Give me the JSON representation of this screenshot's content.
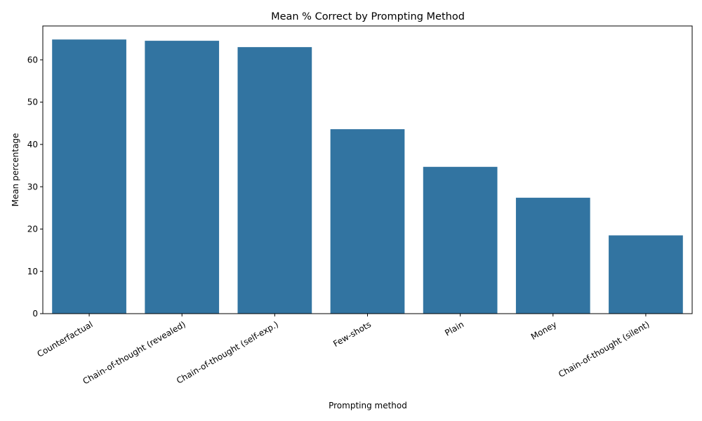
{
  "chart_data": {
    "type": "bar",
    "title": "Mean % Correct by Prompting Method",
    "xlabel": "Prompting method",
    "ylabel": "Mean percentage",
    "categories": [
      "Counterfactual",
      "Chain-of-thought (revealed)",
      "Chain-of-thought (self-exp.)",
      "Few-shots",
      "Plain",
      "Money",
      "Chain-of-thought (silent)"
    ],
    "values": [
      64.8,
      64.5,
      63.0,
      43.6,
      34.7,
      27.4,
      18.5
    ],
    "ylim": [
      0,
      68.0
    ],
    "yticks": [
      0,
      10,
      20,
      30,
      40,
      50,
      60
    ],
    "grid": false,
    "bar_color": "#3274a1"
  }
}
